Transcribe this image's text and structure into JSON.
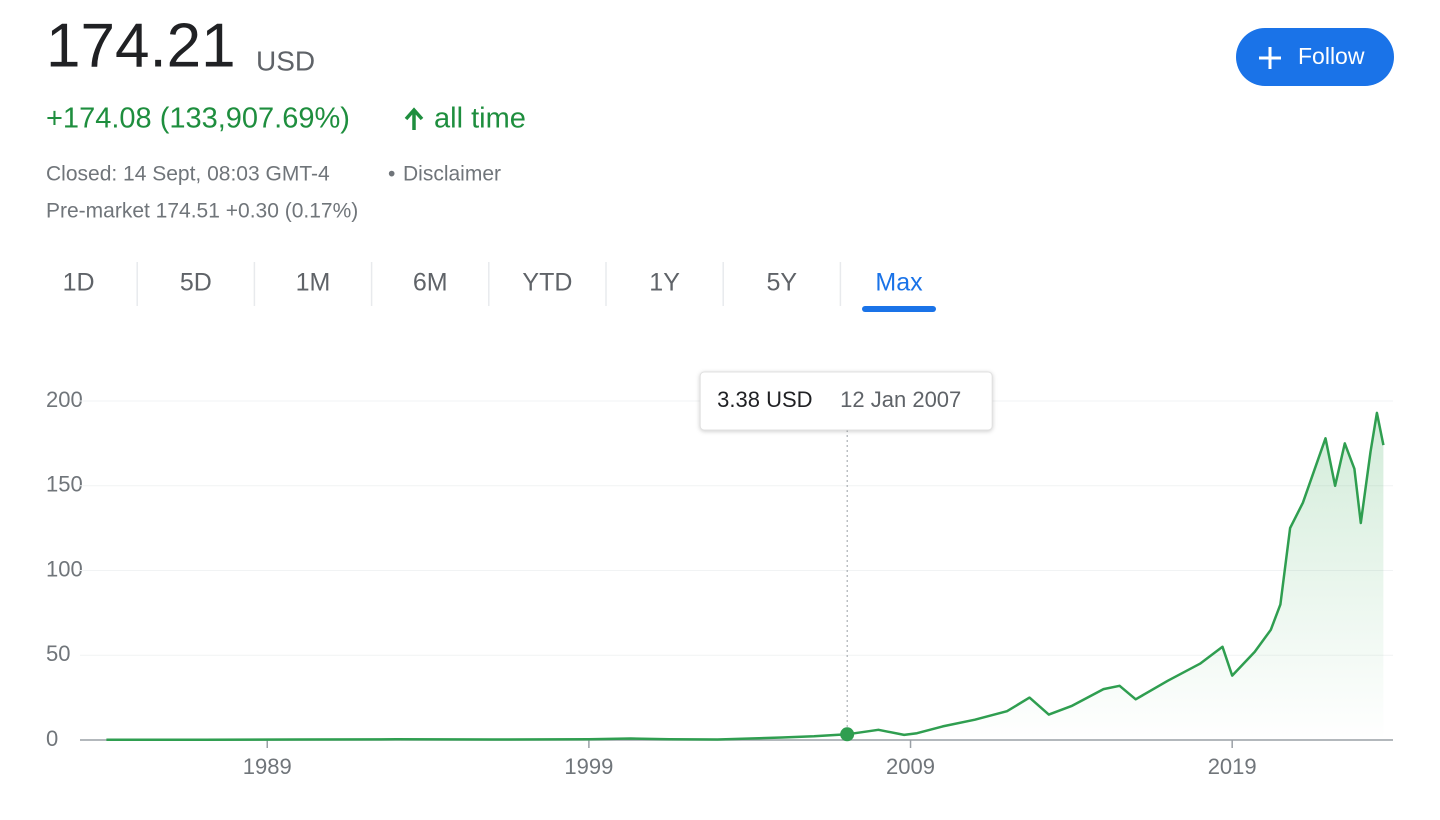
{
  "header": {
    "price": "174.21",
    "currency": "USD",
    "change": "+174.08 (133,907.69%)",
    "period": "all time",
    "status": "Closed: 14 Sept, 08:03 GMT-4",
    "separator": "•",
    "disclaimer": "Disclaimer",
    "premarket": "Pre-market 174.51 +0.30 (0.17%)",
    "follow": "Follow"
  },
  "tabs": {
    "items": [
      "1D",
      "5D",
      "1M",
      "6M",
      "YTD",
      "1Y",
      "5Y",
      "Max"
    ],
    "active": 7
  },
  "chart_data": {
    "type": "line",
    "color": "#2f9e50",
    "x": [
      1984,
      1987,
      1990,
      1993,
      1996,
      1999,
      2000.3,
      2001.5,
      2003,
      2005,
      2006,
      2007.03,
      2008,
      2008.8,
      2009.2,
      2010,
      2011,
      2012,
      2012.7,
      2013.3,
      2014,
      2015,
      2015.5,
      2016,
      2017,
      2018,
      2018.7,
      2019,
      2019.7,
      2020.2,
      2020.5,
      2020.8,
      2021.2,
      2021.9,
      2022.2,
      2022.5,
      2022.8,
      2023,
      2023.3,
      2023.5,
      2023.7
    ],
    "values": [
      0.1,
      0.2,
      0.3,
      0.4,
      0.3,
      0.5,
      0.9,
      0.4,
      0.3,
      1.5,
      2.2,
      3.38,
      6,
      3,
      4,
      8,
      12,
      17,
      25,
      15,
      20,
      30,
      32,
      24,
      35,
      45,
      55,
      38,
      52,
      65,
      80,
      125,
      140,
      178,
      150,
      175,
      160,
      128,
      170,
      193,
      174
    ],
    "xlim": [
      1983.8,
      2024
    ],
    "ylim": [
      0,
      200
    ],
    "xticks": [
      1989,
      1999,
      2009,
      2019
    ],
    "yticks": [
      0,
      50,
      100,
      150,
      200
    ],
    "grid": true,
    "highlight": {
      "x": 2007.03,
      "y": 3.38,
      "label": "3.38 USD",
      "date": "12 Jan 2007"
    }
  }
}
